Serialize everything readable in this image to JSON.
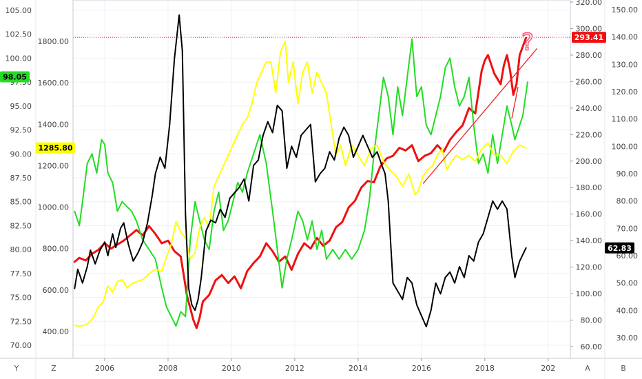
{
  "chart_data": {
    "type": "line",
    "title": "",
    "x_ticks": [
      "2006",
      "2008",
      "2010",
      "2012",
      "2014",
      "2016",
      "2018",
      "202"
    ],
    "xlim": [
      2005.0,
      2020.7
    ],
    "axes": {
      "left_outer": {
        "ticks": [
          "105.00",
          "102.50",
          "100.00",
          "97.50",
          "95.00",
          "92.50",
          "90.00",
          "87.50",
          "85.00",
          "82.50",
          "80.00",
          "77.50",
          "75.00",
          "72.50",
          "70.00"
        ],
        "range": [
          70,
          105
        ]
      },
      "left_inner": {
        "ticks": [
          "1800.00",
          "1600.00",
          "1400.00",
          "1200.00",
          "1000.00",
          "800.00",
          "600.00",
          "400.00"
        ],
        "range": [
          400,
          1800
        ]
      },
      "right_inner": {
        "ticks": [
          "320.00",
          "300.00",
          "280.00",
          "260.00",
          "240.00",
          "220.00",
          "200.00",
          "180.00",
          "160.00",
          "140.00",
          "120.00",
          "100.00",
          "80.00",
          "60.00"
        ],
        "range": [
          60,
          320
        ]
      },
      "right_outer": {
        "ticks": [
          "150.00",
          "140.00",
          "130.00",
          "120.00",
          "110.00",
          "100.00",
          "90.00",
          "80.00",
          "70.00",
          "60.00",
          "50.00",
          "40.00",
          "30.00"
        ],
        "range": [
          30,
          150
        ]
      }
    },
    "corner_labels": {
      "bottom_left_1": "Y",
      "bottom_left_2": "Z",
      "bottom_right_1": "A",
      "bottom_right_2": "B"
    },
    "price_tags": [
      {
        "text": "98.05",
        "color": "#22dd22",
        "text_color": "#000000",
        "side": "left",
        "value": 98.05,
        "axis": "left_outer"
      },
      {
        "text": "1285.80",
        "color": "#ffff00",
        "text_color": "#000000",
        "side": "left",
        "value": 1285.8,
        "axis": "left_inner"
      },
      {
        "text": "293.41",
        "color": "#ee1111",
        "text_color": "#ffffff",
        "side": "right",
        "value": 293.41,
        "axis": "right_inner"
      },
      {
        "text": "62.83",
        "color": "#000000",
        "text_color": "#ffffff",
        "side": "right",
        "value": 62.83,
        "axis": "right_outer"
      }
    ],
    "reference_line": {
      "value": 293.41,
      "axis": "right_inner",
      "color": "#ee1111",
      "style": "dotted"
    },
    "annotations": [
      {
        "type": "trendline",
        "color": "#ee2222",
        "axis": "right_inner",
        "points": [
          [
            2016.05,
            183
          ],
          [
            2019.65,
            285
          ]
        ]
      },
      {
        "type": "trendline",
        "color": "#ee2222",
        "axis": "right_inner",
        "points": [
          [
            2018.85,
            232
          ],
          [
            2019.05,
            256
          ]
        ]
      },
      {
        "type": "question_mark",
        "text": "?",
        "color": "#ff5577",
        "axis": "right_inner",
        "point": [
          2019.35,
          288
        ]
      }
    ],
    "series": [
      {
        "color": "#ee1111",
        "axis": "right_inner",
        "width": 3,
        "x": [
          2005.05,
          2005.2,
          2005.4,
          2005.6,
          2005.8,
          2006.0,
          2006.2,
          2006.4,
          2006.6,
          2006.8,
          2007.0,
          2007.2,
          2007.4,
          2007.6,
          2007.8,
          2008.0,
          2008.2,
          2008.4,
          2008.6,
          2008.8,
          2008.9,
          2009.0,
          2009.1,
          2009.3,
          2009.5,
          2009.7,
          2009.9,
          2010.1,
          2010.3,
          2010.5,
          2010.7,
          2010.9,
          2011.1,
          2011.3,
          2011.5,
          2011.7,
          2011.9,
          2012.1,
          2012.3,
          2012.5,
          2012.7,
          2012.9,
          2013.1,
          2013.3,
          2013.5,
          2013.7,
          2013.9,
          2014.1,
          2014.3,
          2014.5,
          2014.7,
          2014.9,
          2015.1,
          2015.3,
          2015.5,
          2015.7,
          2015.9,
          2016.1,
          2016.3,
          2016.5,
          2016.7,
          2016.9,
          2017.1,
          2017.3,
          2017.5,
          2017.7,
          2017.9,
          2018.0,
          2018.1,
          2018.3,
          2018.5,
          2018.6,
          2018.7,
          2018.8,
          2018.9,
          2019.0,
          2019.1,
          2019.3
        ],
        "y": [
          124,
          127,
          125,
          130,
          133,
          138,
          134,
          137,
          140,
          144,
          148,
          144,
          151,
          145,
          138,
          140,
          132,
          128,
          98,
          80,
          74,
          82,
          94,
          99,
          110,
          114,
          108,
          113,
          104,
          117,
          123,
          128,
          138,
          132,
          124,
          128,
          118,
          130,
          138,
          134,
          142,
          136,
          140,
          150,
          154,
          165,
          170,
          180,
          185,
          184,
          196,
          202,
          204,
          210,
          208,
          212,
          200,
          204,
          206,
          212,
          207,
          216,
          222,
          227,
          240,
          236,
          268,
          276,
          280,
          266,
          258,
          272,
          280,
          268,
          250,
          258,
          280,
          293
        ]
      },
      {
        "color": "#22dd22",
        "axis": "left_outer",
        "width": 2,
        "x": [
          2005.05,
          2005.2,
          2005.3,
          2005.45,
          2005.6,
          2005.75,
          2005.9,
          2006.0,
          2006.1,
          2006.25,
          2006.4,
          2006.55,
          2006.7,
          2006.85,
          2007.0,
          2007.2,
          2007.4,
          2007.6,
          2007.8,
          2007.95,
          2008.1,
          2008.25,
          2008.4,
          2008.55,
          2008.7,
          2008.85,
          2009.0,
          2009.15,
          2009.3,
          2009.45,
          2009.6,
          2009.75,
          2009.9,
          2010.05,
          2010.2,
          2010.35,
          2010.5,
          2010.7,
          2010.9,
          2011.1,
          2011.3,
          2011.45,
          2011.6,
          2011.75,
          2011.9,
          2012.1,
          2012.25,
          2012.4,
          2012.55,
          2012.7,
          2012.85,
          2013.0,
          2013.2,
          2013.4,
          2013.6,
          2013.8,
          2014.0,
          2014.2,
          2014.35,
          2014.5,
          2014.65,
          2014.8,
          2014.95,
          2015.1,
          2015.25,
          2015.4,
          2015.55,
          2015.7,
          2015.85,
          2016.0,
          2016.15,
          2016.3,
          2016.45,
          2016.6,
          2016.75,
          2016.9,
          2017.05,
          2017.2,
          2017.35,
          2017.5,
          2017.65,
          2017.8,
          2017.95,
          2018.1,
          2018.25,
          2018.4,
          2018.55,
          2018.7,
          2018.85,
          2018.95,
          2019.05,
          2019.2,
          2019.35
        ],
        "y": [
          84,
          82.5,
          85,
          89,
          90,
          88,
          91.5,
          91,
          88,
          87,
          84,
          85,
          84.5,
          84,
          83,
          81,
          80,
          79,
          76,
          74,
          73,
          72,
          73.5,
          73,
          81,
          85,
          83,
          81,
          80,
          84,
          86,
          82,
          83,
          85,
          87,
          86,
          88,
          90,
          92,
          89,
          84,
          80,
          76,
          79,
          81,
          84,
          83,
          81,
          83,
          80,
          82,
          79,
          80,
          79,
          80,
          79,
          80,
          82,
          85,
          90,
          94,
          98,
          96,
          92,
          97,
          94,
          98,
          102,
          96,
          97,
          93,
          92,
          94,
          96,
          99,
          100,
          97,
          95,
          96,
          98,
          93,
          89,
          90,
          88,
          92,
          89,
          92,
          95,
          93,
          91.5,
          92.5,
          94,
          97.5
        ]
      },
      {
        "color": "#ffff00",
        "axis": "left_inner",
        "width": 2,
        "x": [
          2005.05,
          2005.2,
          2005.35,
          2005.5,
          2005.65,
          2005.8,
          2005.95,
          2006.1,
          2006.25,
          2006.4,
          2006.55,
          2006.7,
          2006.85,
          2007.0,
          2007.2,
          2007.4,
          2007.6,
          2007.8,
          2007.95,
          2008.1,
          2008.25,
          2008.4,
          2008.55,
          2008.7,
          2008.85,
          2009.0,
          2009.15,
          2009.3,
          2009.45,
          2009.6,
          2009.75,
          2009.9,
          2010.05,
          2010.2,
          2010.35,
          2010.5,
          2010.65,
          2010.8,
          2010.95,
          2011.1,
          2011.25,
          2011.4,
          2011.55,
          2011.7,
          2011.8,
          2011.95,
          2012.1,
          2012.25,
          2012.4,
          2012.55,
          2012.7,
          2012.85,
          2013.0,
          2013.15,
          2013.3,
          2013.45,
          2013.6,
          2013.8,
          2014.0,
          2014.2,
          2014.4,
          2014.6,
          2014.8,
          2015.0,
          2015.2,
          2015.4,
          2015.6,
          2015.8,
          2015.9,
          2016.05,
          2016.2,
          2016.35,
          2016.5,
          2016.65,
          2016.8,
          2016.95,
          2017.1,
          2017.3,
          2017.5,
          2017.7,
          2017.9,
          2018.1,
          2018.3,
          2018.5,
          2018.7,
          2018.9,
          2019.1,
          2019.3
        ],
        "y": [
          430,
          425,
          430,
          440,
          470,
          520,
          540,
          620,
          590,
          640,
          650,
          610,
          630,
          640,
          650,
          680,
          700,
          690,
          760,
          820,
          930,
          880,
          850,
          750,
          780,
          900,
          950,
          900,
          1100,
          1150,
          1200,
          1250,
          1300,
          1350,
          1400,
          1430,
          1500,
          1600,
          1650,
          1700,
          1700,
          1550,
          1750,
          1800,
          1600,
          1700,
          1500,
          1650,
          1700,
          1550,
          1650,
          1600,
          1550,
          1400,
          1250,
          1300,
          1200,
          1300,
          1250,
          1200,
          1280,
          1300,
          1220,
          1180,
          1150,
          1100,
          1160,
          1060,
          1080,
          1150,
          1180,
          1200,
          1250,
          1280,
          1180,
          1220,
          1250,
          1230,
          1250,
          1220,
          1280,
          1310,
          1250,
          1250,
          1210,
          1270,
          1300,
          1285
        ]
      },
      {
        "color": "#000000",
        "axis": "right_outer",
        "width": 2,
        "x": [
          2005.05,
          2005.15,
          2005.3,
          2005.45,
          2005.55,
          2005.7,
          2005.85,
          2006.0,
          2006.1,
          2006.25,
          2006.35,
          2006.5,
          2006.6,
          2006.75,
          2006.9,
          2007.05,
          2007.2,
          2007.35,
          2007.5,
          2007.6,
          2007.75,
          2007.9,
          2008.05,
          2008.2,
          2008.35,
          2008.45,
          2008.55,
          2008.65,
          2008.75,
          2008.85,
          2008.95,
          2009.05,
          2009.2,
          2009.35,
          2009.5,
          2009.65,
          2009.8,
          2009.95,
          2010.1,
          2010.25,
          2010.4,
          2010.55,
          2010.7,
          2010.85,
          2011.0,
          2011.15,
          2011.3,
          2011.45,
          2011.6,
          2011.75,
          2011.9,
          2012.05,
          2012.2,
          2012.35,
          2012.5,
          2012.65,
          2012.8,
          2012.95,
          2013.1,
          2013.25,
          2013.4,
          2013.55,
          2013.7,
          2013.85,
          2014.0,
          2014.15,
          2014.3,
          2014.45,
          2014.6,
          2014.75,
          2014.85,
          2014.95,
          2015.1,
          2015.25,
          2015.4,
          2015.55,
          2015.7,
          2015.85,
          2016.0,
          2016.15,
          2016.3,
          2016.45,
          2016.6,
          2016.75,
          2016.9,
          2017.05,
          2017.2,
          2017.35,
          2017.5,
          2017.65,
          2017.8,
          2017.95,
          2018.1,
          2018.25,
          2018.4,
          2018.55,
          2018.7,
          2018.85,
          2018.95,
          2019.1,
          2019.3
        ],
        "y": [
          48,
          55,
          50,
          56,
          62,
          57,
          62,
          65,
          60,
          68,
          63,
          70,
          72,
          64,
          58,
          61,
          65,
          72,
          82,
          90,
          96,
          92,
          108,
          132,
          148,
          135,
          75,
          48,
          42,
          40,
          44,
          52,
          69,
          73,
          72,
          77,
          74,
          81,
          83,
          85,
          88,
          80,
          93,
          95,
          104,
          109,
          105,
          115,
          113,
          92,
          100,
          96,
          104,
          106,
          108,
          87,
          90,
          92,
          98,
          95,
          103,
          107,
          104,
          96,
          100,
          104,
          100,
          96,
          98,
          93,
          90,
          80,
          50,
          47,
          44,
          52,
          50,
          42,
          38,
          34,
          40,
          50,
          46,
          52,
          54,
          50,
          56,
          52,
          60,
          58,
          65,
          68,
          74,
          80,
          77,
          80,
          77,
          60,
          52,
          58,
          62.83
        ]
      }
    ]
  }
}
